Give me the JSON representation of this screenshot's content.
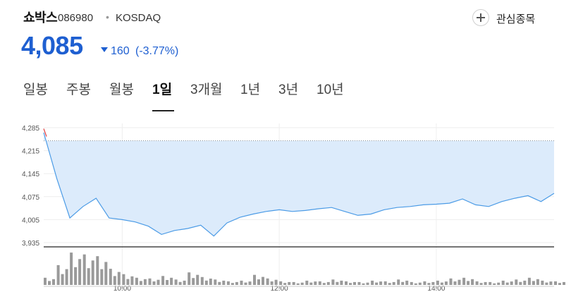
{
  "stock": {
    "name": "쇼박스",
    "code": "086980",
    "separator": "•",
    "market": "KOSDAQ",
    "price": "4,085",
    "change_value": "160",
    "change_rate": "(-3.77%)",
    "direction": "down",
    "colors": {
      "down": "#1e5fd1",
      "line": "#4b9be6",
      "area": "#dcebfb",
      "volume": "#9a9a9a"
    }
  },
  "watchlist": {
    "label": "관심종목",
    "icon": "plus-circle-icon"
  },
  "tabs": [
    {
      "label": "일봉",
      "active": false
    },
    {
      "label": "주봉",
      "active": false
    },
    {
      "label": "월봉",
      "active": false
    },
    {
      "label": "1일",
      "active": true
    },
    {
      "label": "3개월",
      "active": false
    },
    {
      "label": "1년",
      "active": false
    },
    {
      "label": "3년",
      "active": false
    },
    {
      "label": "10년",
      "active": false
    }
  ],
  "chart_data": {
    "type": "line",
    "title": "",
    "xlabel": "",
    "ylabel": "",
    "y_ticks": [
      "4,285",
      "4,215",
      "4,145",
      "4,075",
      "4,005",
      "3,935"
    ],
    "x_ticks": [
      "10:00",
      "12:00",
      "14:00"
    ],
    "ylim": [
      3935,
      4285
    ],
    "previous_close": 4245,
    "grid": true,
    "x": [
      "09:00",
      "09:10",
      "09:20",
      "09:30",
      "09:40",
      "09:50",
      "10:00",
      "10:10",
      "10:20",
      "10:30",
      "10:40",
      "10:50",
      "11:00",
      "11:10",
      "11:20",
      "11:30",
      "11:40",
      "11:50",
      "12:00",
      "12:10",
      "12:20",
      "12:30",
      "12:40",
      "12:50",
      "13:00",
      "13:10",
      "13:20",
      "13:30",
      "13:40",
      "13:50",
      "14:00",
      "14:10",
      "14:20",
      "14:30",
      "14:40",
      "14:50",
      "15:00",
      "15:10",
      "15:20",
      "15:30"
    ],
    "values": [
      4270,
      4130,
      4010,
      4045,
      4070,
      4010,
      4005,
      3998,
      3985,
      3960,
      3972,
      3978,
      3988,
      3955,
      3995,
      4012,
      4022,
      4030,
      4035,
      4030,
      4033,
      4038,
      4042,
      4030,
      4018,
      4022,
      4035,
      4042,
      4045,
      4050,
      4052,
      4055,
      4068,
      4050,
      4045,
      4060,
      4070,
      4078,
      4060,
      4085
    ],
    "volume_relative": [
      0.2,
      0.55,
      0.9,
      0.85,
      0.8,
      0.45,
      0.3,
      0.2,
      0.18,
      0.25,
      0.15,
      0.35,
      0.22,
      0.15,
      0.1,
      0.12,
      0.28,
      0.18,
      0.1,
      0.08,
      0.12,
      0.1,
      0.15,
      0.1,
      0.08,
      0.12,
      0.1,
      0.15,
      0.08,
      0.1,
      0.12,
      0.18,
      0.2,
      0.1,
      0.08,
      0.12,
      0.15,
      0.2,
      0.12,
      0.1
    ]
  }
}
